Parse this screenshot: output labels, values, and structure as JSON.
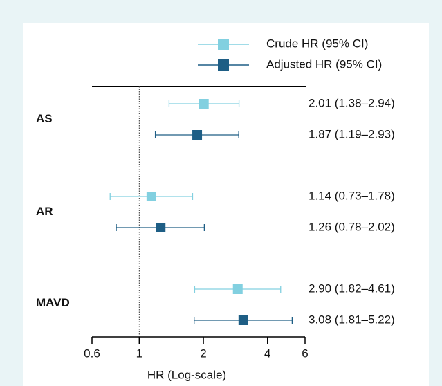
{
  "chart_data": {
    "type": "forest",
    "x_label": "HR (Log-scale)",
    "log_x": true,
    "xlim": [
      0.6,
      6
    ],
    "xticks": [
      0.6,
      1,
      2,
      4,
      6
    ],
    "reference_line": 1,
    "legend": "top-right",
    "categories": [
      "AS",
      "AR",
      "MAVD"
    ],
    "series": [
      {
        "name": "Crude HR (95% CI)",
        "color": "#82d0e0",
        "values": [
          2.01,
          1.14,
          2.9
        ],
        "lower": [
          1.38,
          0.73,
          1.82
        ],
        "upper": [
          2.94,
          1.78,
          4.61
        ],
        "value_labels": [
          "2.01 (1.38–2.94)",
          "1.14 (0.73–1.78)",
          "2.90 (1.82–4.61)"
        ]
      },
      {
        "name": "Adjusted HR (95% CI)",
        "color": "#1e5e85",
        "values": [
          1.87,
          1.26,
          3.08
        ],
        "lower": [
          1.19,
          0.78,
          1.81
        ],
        "upper": [
          2.93,
          2.02,
          5.22
        ],
        "value_labels": [
          "1.87 (1.19–2.93)",
          "1.26 (0.78–2.02)",
          "3.08 (1.81–5.22)"
        ]
      }
    ]
  }
}
